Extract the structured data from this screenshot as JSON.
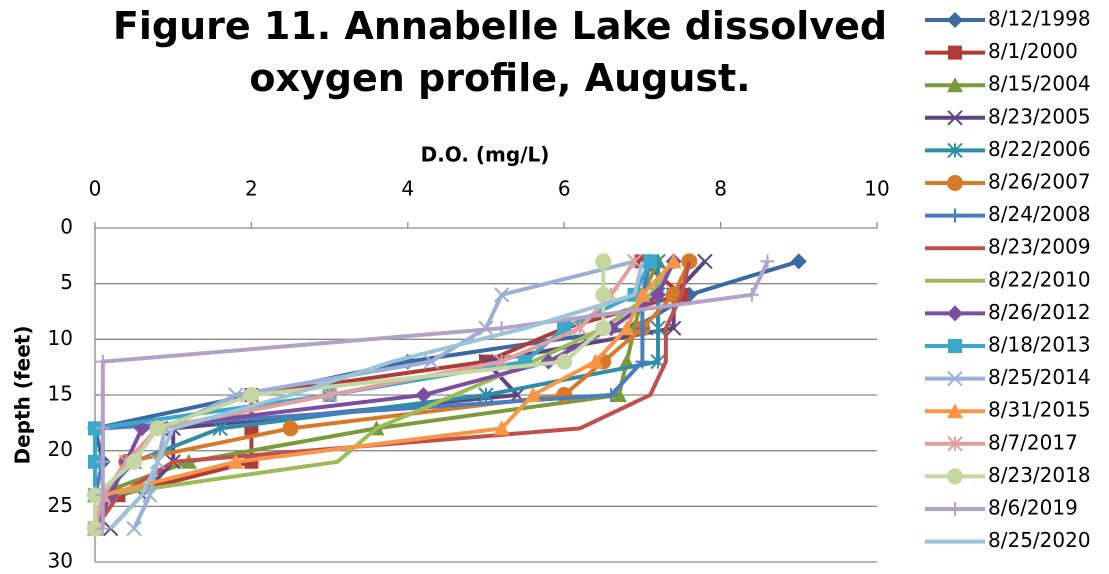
{
  "chart_data": {
    "type": "line",
    "title": "Figure 11. Annabelle Lake dissolved oxygen profile, August.",
    "xlabel": "D.O. (mg/L)",
    "ylabel": "Depth (feet)",
    "xaxis_position": "top",
    "grid": true,
    "legend": "right",
    "xlim": [
      0,
      10
    ],
    "xticks": [
      0,
      2,
      4,
      6,
      8,
      10
    ],
    "ylim": [
      30,
      0
    ],
    "yticks": [
      0,
      5,
      10,
      15,
      20,
      25,
      30
    ],
    "y": [
      3,
      6,
      9,
      12,
      15,
      18,
      21,
      24,
      27
    ],
    "series": [
      {
        "name": "8/12/1998",
        "color": "#3b6aa3",
        "marker": "diamond",
        "values": [
          9.0,
          7.6,
          6.9,
          4.0,
          2.0,
          0.0,
          0.1,
          0.0,
          0.0
        ]
      },
      {
        "name": "8/1/2000",
        "color": "#b03c38",
        "marker": "square",
        "values": [
          7.0,
          7.5,
          6.0,
          5.0,
          2.0,
          2.0,
          2.0,
          0.3,
          0.0
        ]
      },
      {
        "name": "8/15/2004",
        "color": "#7a9a3b",
        "marker": "triangle",
        "values": [
          7.2,
          7.0,
          6.9,
          6.8,
          6.7,
          3.6,
          1.2,
          0.0,
          0.0
        ]
      },
      {
        "name": "8/23/2005",
        "color": "#5f4482",
        "marker": "x",
        "values": [
          7.8,
          7.4,
          7.4,
          5.0,
          5.4,
          1.0,
          1.0,
          0.6,
          0.2
        ]
      },
      {
        "name": "8/22/2006",
        "color": "#2e8ea6",
        "marker": "asterisk",
        "values": [
          7.2,
          7.2,
          7.2,
          7.2,
          5.0,
          1.6,
          0.5,
          0.1,
          0.0
        ]
      },
      {
        "name": "8/26/2007",
        "color": "#d67a2a",
        "marker": "circle",
        "values": [
          7.6,
          7.4,
          7.0,
          6.5,
          6.0,
          2.5,
          0.4,
          0.1,
          0.0
        ]
      },
      {
        "name": "8/24/2008",
        "color": "#4a7dbf",
        "marker": "plus",
        "values": [
          7.1,
          7.0,
          7.0,
          7.0,
          6.6,
          0.1,
          0.1,
          0.0,
          0.0
        ]
      },
      {
        "name": "8/23/2009",
        "color": "#c0504d",
        "marker": "none",
        "values": [
          7.6,
          7.5,
          7.3,
          7.3,
          7.1,
          6.2,
          1.0,
          0.3,
          0.0
        ]
      },
      {
        "name": "8/22/2010",
        "color": "#9bbb59",
        "marker": "none",
        "values": [
          7.4,
          7.1,
          6.5,
          5.6,
          4.6,
          3.6,
          3.1,
          0.1,
          0.0
        ]
      },
      {
        "name": "8/26/2012",
        "color": "#7a4fa0",
        "marker": "diamond",
        "values": [
          7.4,
          7.2,
          6.6,
          5.8,
          4.2,
          0.6,
          0.4,
          0.2,
          0.0
        ]
      },
      {
        "name": "8/18/2013",
        "color": "#3aa8c8",
        "marker": "square",
        "values": [
          7.1,
          6.9,
          6.0,
          5.5,
          3.0,
          0.0,
          0.0,
          0.0,
          0.0
        ]
      },
      {
        "name": "8/25/2014",
        "color": "#9ab0d8",
        "marker": "x",
        "values": [
          6.9,
          5.2,
          5.0,
          4.3,
          1.8,
          0.9,
          0.8,
          0.7,
          0.5
        ]
      },
      {
        "name": "8/31/2015",
        "color": "#f79646",
        "marker": "triangle",
        "values": [
          7.4,
          7.0,
          6.8,
          6.4,
          5.6,
          5.2,
          1.8,
          0.1,
          0.0
        ]
      },
      {
        "name": "8/7/2017",
        "color": "#e0a0a0",
        "marker": "asterisk",
        "values": [
          6.9,
          6.6,
          6.2,
          5.2,
          3.0,
          0.8,
          0.4,
          0.1,
          0.0
        ]
      },
      {
        "name": "8/23/2018",
        "color": "#c4d7a0",
        "marker": "circle",
        "values": [
          6.5,
          6.5,
          6.5,
          6.0,
          2.0,
          0.8,
          0.5,
          0.0,
          0.0
        ]
      },
      {
        "name": "8/6/2019",
        "color": "#b3a2c7",
        "marker": "plus",
        "values": [
          8.6,
          8.4,
          5.2,
          0.1,
          0.1,
          0.1,
          0.1,
          0.1,
          0.1
        ]
      },
      {
        "name": "8/25/2020",
        "color": "#9dc3d8",
        "marker": "none",
        "values": [
          7.0,
          6.9,
          5.5,
          3.8,
          2.5,
          1.0,
          0.8,
          0.6,
          0.2
        ]
      }
    ]
  }
}
